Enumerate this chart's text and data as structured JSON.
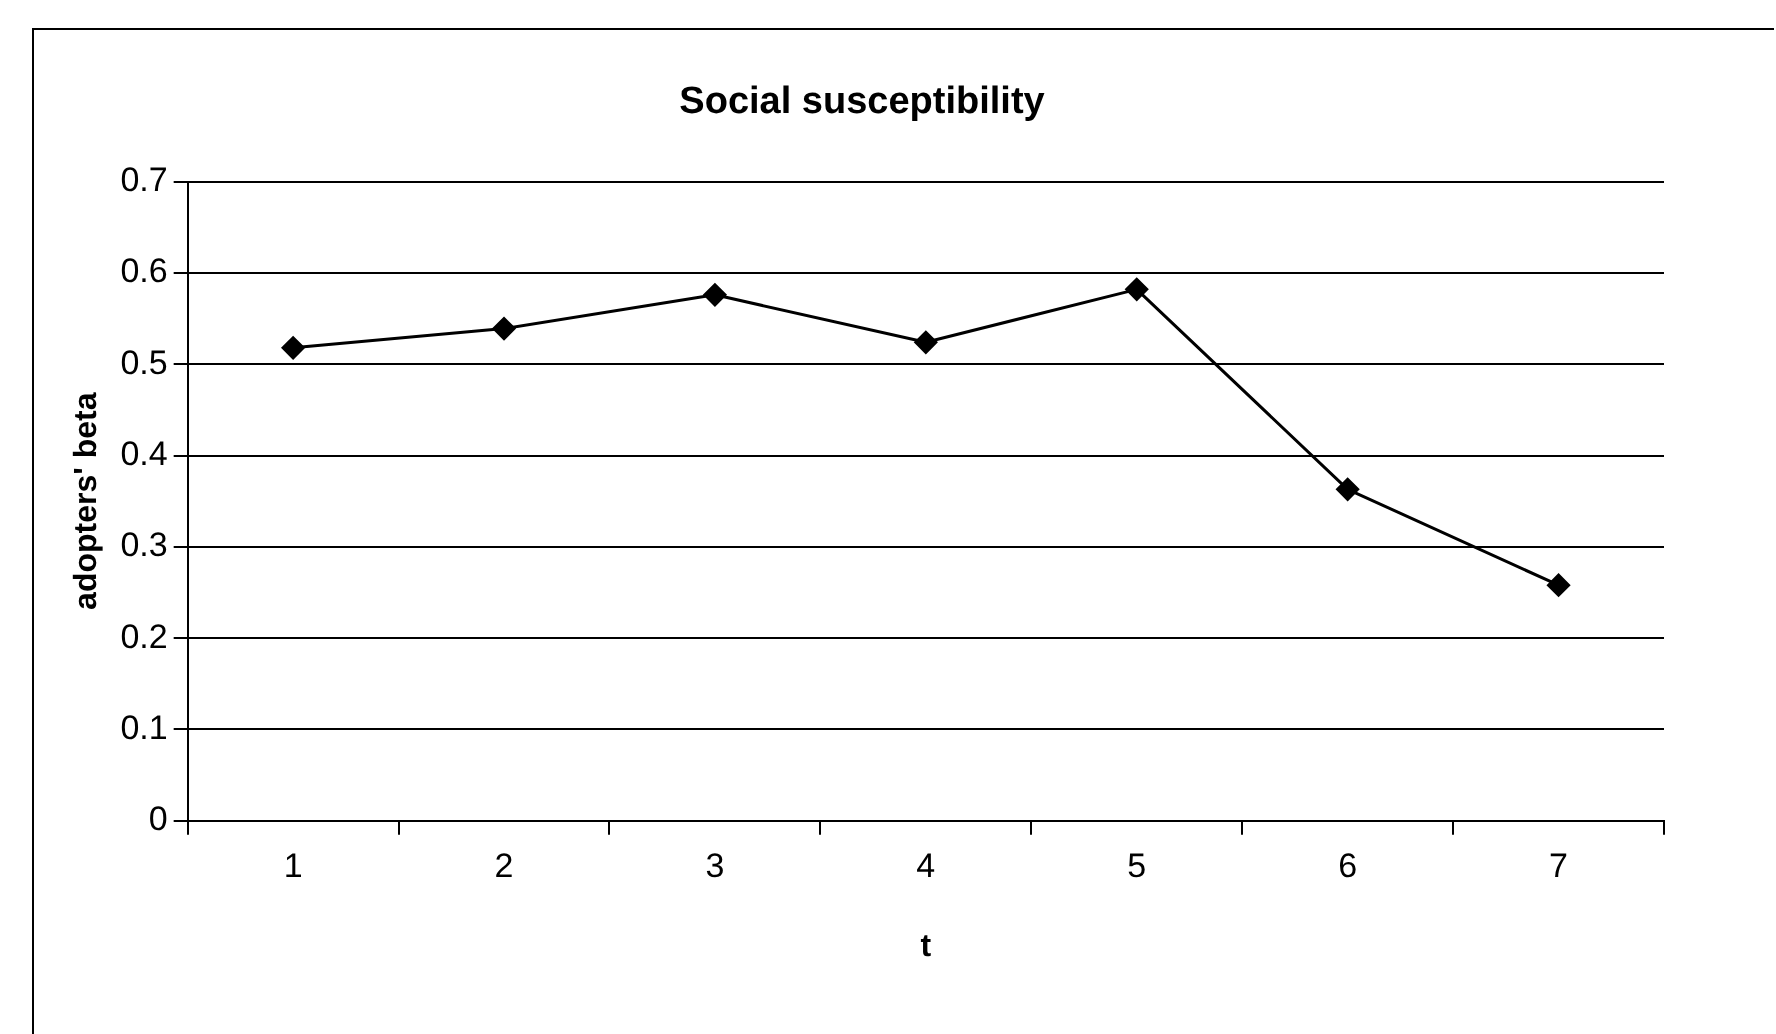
{
  "chart_data": {
    "type": "line",
    "title": "Social susceptibility",
    "xlabel": "t",
    "ylabel": "adopters' beta",
    "categories": [
      "1",
      "2",
      "3",
      "4",
      "5",
      "6",
      "7"
    ],
    "series": [
      {
        "color": "#000000",
        "values": [
          0.518,
          0.539,
          0.576,
          0.524,
          0.582,
          0.363,
          0.258
        ]
      }
    ],
    "ylim": [
      0,
      0.7
    ],
    "yticks": [
      0,
      0.1,
      0.2,
      0.3,
      0.4,
      0.5,
      0.6,
      0.7
    ],
    "grid": "y",
    "legend": false,
    "marker": "diamond",
    "line_style": "solid"
  }
}
